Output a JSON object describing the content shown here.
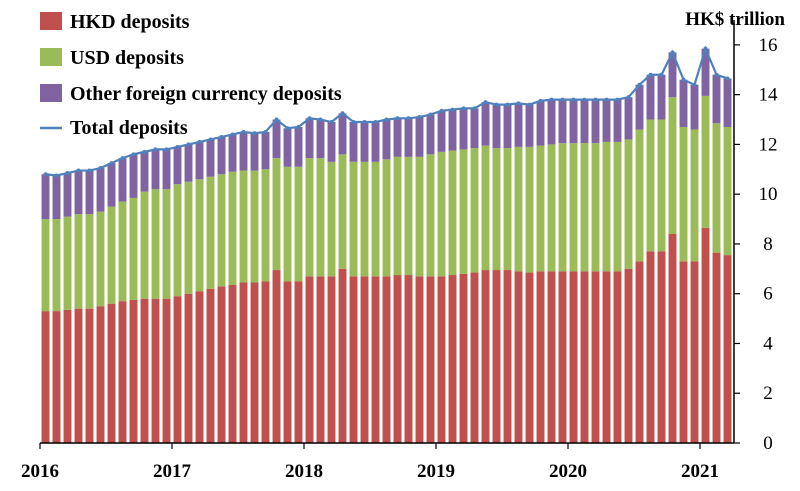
{
  "chart_data": {
    "type": "bar",
    "stacked": true,
    "unit_label": "HK$ trillion",
    "y_axis_position": "right",
    "ylim": [
      0,
      17
    ],
    "y_ticks": [
      "0",
      "2",
      "4",
      "6",
      "8",
      "10",
      "12",
      "14",
      "16"
    ],
    "x_tick_labels": [
      "2016",
      "2017",
      "2018",
      "2019",
      "2020",
      "2021"
    ],
    "legend_position": "top-left",
    "grid": false,
    "colors": {
      "hkd": "#C0504D",
      "usd": "#9BBB59",
      "other": "#8064A2",
      "total": "#4F81BD"
    },
    "categories": [
      "2016-01",
      "2016-02",
      "2016-03",
      "2016-04",
      "2016-05",
      "2016-06",
      "2016-07",
      "2016-08",
      "2016-09",
      "2016-10",
      "2016-11",
      "2016-12",
      "2017-01",
      "2017-02",
      "2017-03",
      "2017-04",
      "2017-05",
      "2017-06",
      "2017-07",
      "2017-08",
      "2017-09",
      "2017-10",
      "2017-11",
      "2017-12",
      "2018-01",
      "2018-02",
      "2018-03",
      "2018-04",
      "2018-05",
      "2018-06",
      "2018-07",
      "2018-08",
      "2018-09",
      "2018-10",
      "2018-11",
      "2018-12",
      "2019-01",
      "2019-02",
      "2019-03",
      "2019-04",
      "2019-05",
      "2019-06",
      "2019-07",
      "2019-08",
      "2019-09",
      "2019-10",
      "2019-11",
      "2019-12",
      "2020-01",
      "2020-02",
      "2020-03",
      "2020-04",
      "2020-05",
      "2020-06",
      "2020-07",
      "2020-08",
      "2020-09",
      "2020-10",
      "2020-11",
      "2020-12",
      "2021-01",
      "2021-02",
      "2021-03"
    ],
    "series": [
      {
        "name": "HKD deposits",
        "key": "hkd",
        "values": [
          5.3,
          5.3,
          5.35,
          5.4,
          5.4,
          5.5,
          5.6,
          5.7,
          5.75,
          5.8,
          5.8,
          5.8,
          5.9,
          6.0,
          6.1,
          6.2,
          6.3,
          6.35,
          6.45,
          6.45,
          6.5,
          6.95,
          6.5,
          6.5,
          6.7,
          6.7,
          6.7,
          7.0,
          6.7,
          6.7,
          6.7,
          6.7,
          6.75,
          6.75,
          6.7,
          6.7,
          6.7,
          6.75,
          6.8,
          6.85,
          6.95,
          6.95,
          6.95,
          6.9,
          6.85,
          6.9,
          6.9,
          6.9,
          6.9,
          6.9,
          6.9,
          6.9,
          6.9,
          7.0,
          7.3,
          7.7,
          7.7,
          8.4,
          7.3,
          7.3,
          8.65,
          7.65,
          7.55
        ]
      },
      {
        "name": "USD deposits",
        "key": "usd",
        "values": [
          3.7,
          3.7,
          3.75,
          3.8,
          3.8,
          3.8,
          3.9,
          4.0,
          4.1,
          4.3,
          4.4,
          4.4,
          4.5,
          4.5,
          4.5,
          4.5,
          4.5,
          4.55,
          4.5,
          4.5,
          4.5,
          4.5,
          4.6,
          4.6,
          4.75,
          4.75,
          4.6,
          4.6,
          4.6,
          4.6,
          4.6,
          4.7,
          4.75,
          4.75,
          4.8,
          4.9,
          5.0,
          5.0,
          5.0,
          5.0,
          5.0,
          4.9,
          4.9,
          5.0,
          5.05,
          5.05,
          5.1,
          5.15,
          5.15,
          5.15,
          5.15,
          5.2,
          5.2,
          5.2,
          5.3,
          5.3,
          5.3,
          5.5,
          5.4,
          5.3,
          5.3,
          5.2,
          5.15
        ]
      },
      {
        "name": "Other foreign currency deposits",
        "key": "other",
        "values": [
          1.8,
          1.75,
          1.75,
          1.75,
          1.75,
          1.75,
          1.75,
          1.75,
          1.75,
          1.6,
          1.6,
          1.6,
          1.5,
          1.5,
          1.5,
          1.5,
          1.5,
          1.5,
          1.55,
          1.5,
          1.5,
          1.55,
          1.55,
          1.6,
          1.6,
          1.55,
          1.6,
          1.65,
          1.6,
          1.6,
          1.6,
          1.6,
          1.55,
          1.55,
          1.6,
          1.6,
          1.65,
          1.65,
          1.65,
          1.6,
          1.75,
          1.75,
          1.75,
          1.75,
          1.7,
          1.8,
          1.8,
          1.75,
          1.75,
          1.75,
          1.75,
          1.7,
          1.7,
          1.7,
          1.8,
          1.8,
          1.8,
          1.8,
          1.9,
          1.8,
          1.9,
          1.95,
          1.95
        ]
      },
      {
        "name": "Total deposits",
        "key": "total",
        "type": "line",
        "values": [
          10.8,
          10.75,
          10.85,
          10.95,
          10.95,
          11.05,
          11.25,
          11.45,
          11.6,
          11.7,
          11.8,
          11.8,
          11.9,
          12.0,
          12.1,
          12.2,
          12.3,
          12.4,
          12.5,
          12.45,
          12.5,
          13.0,
          12.65,
          12.7,
          13.05,
          13.0,
          12.9,
          13.25,
          12.9,
          12.9,
          12.9,
          13.0,
          13.05,
          13.05,
          13.1,
          13.2,
          13.35,
          13.4,
          13.45,
          13.45,
          13.7,
          13.6,
          13.6,
          13.65,
          13.6,
          13.75,
          13.8,
          13.8,
          13.8,
          13.8,
          13.8,
          13.8,
          13.8,
          13.9,
          14.4,
          14.8,
          14.8,
          15.7,
          14.6,
          14.4,
          15.85,
          14.8,
          14.65
        ]
      }
    ]
  }
}
